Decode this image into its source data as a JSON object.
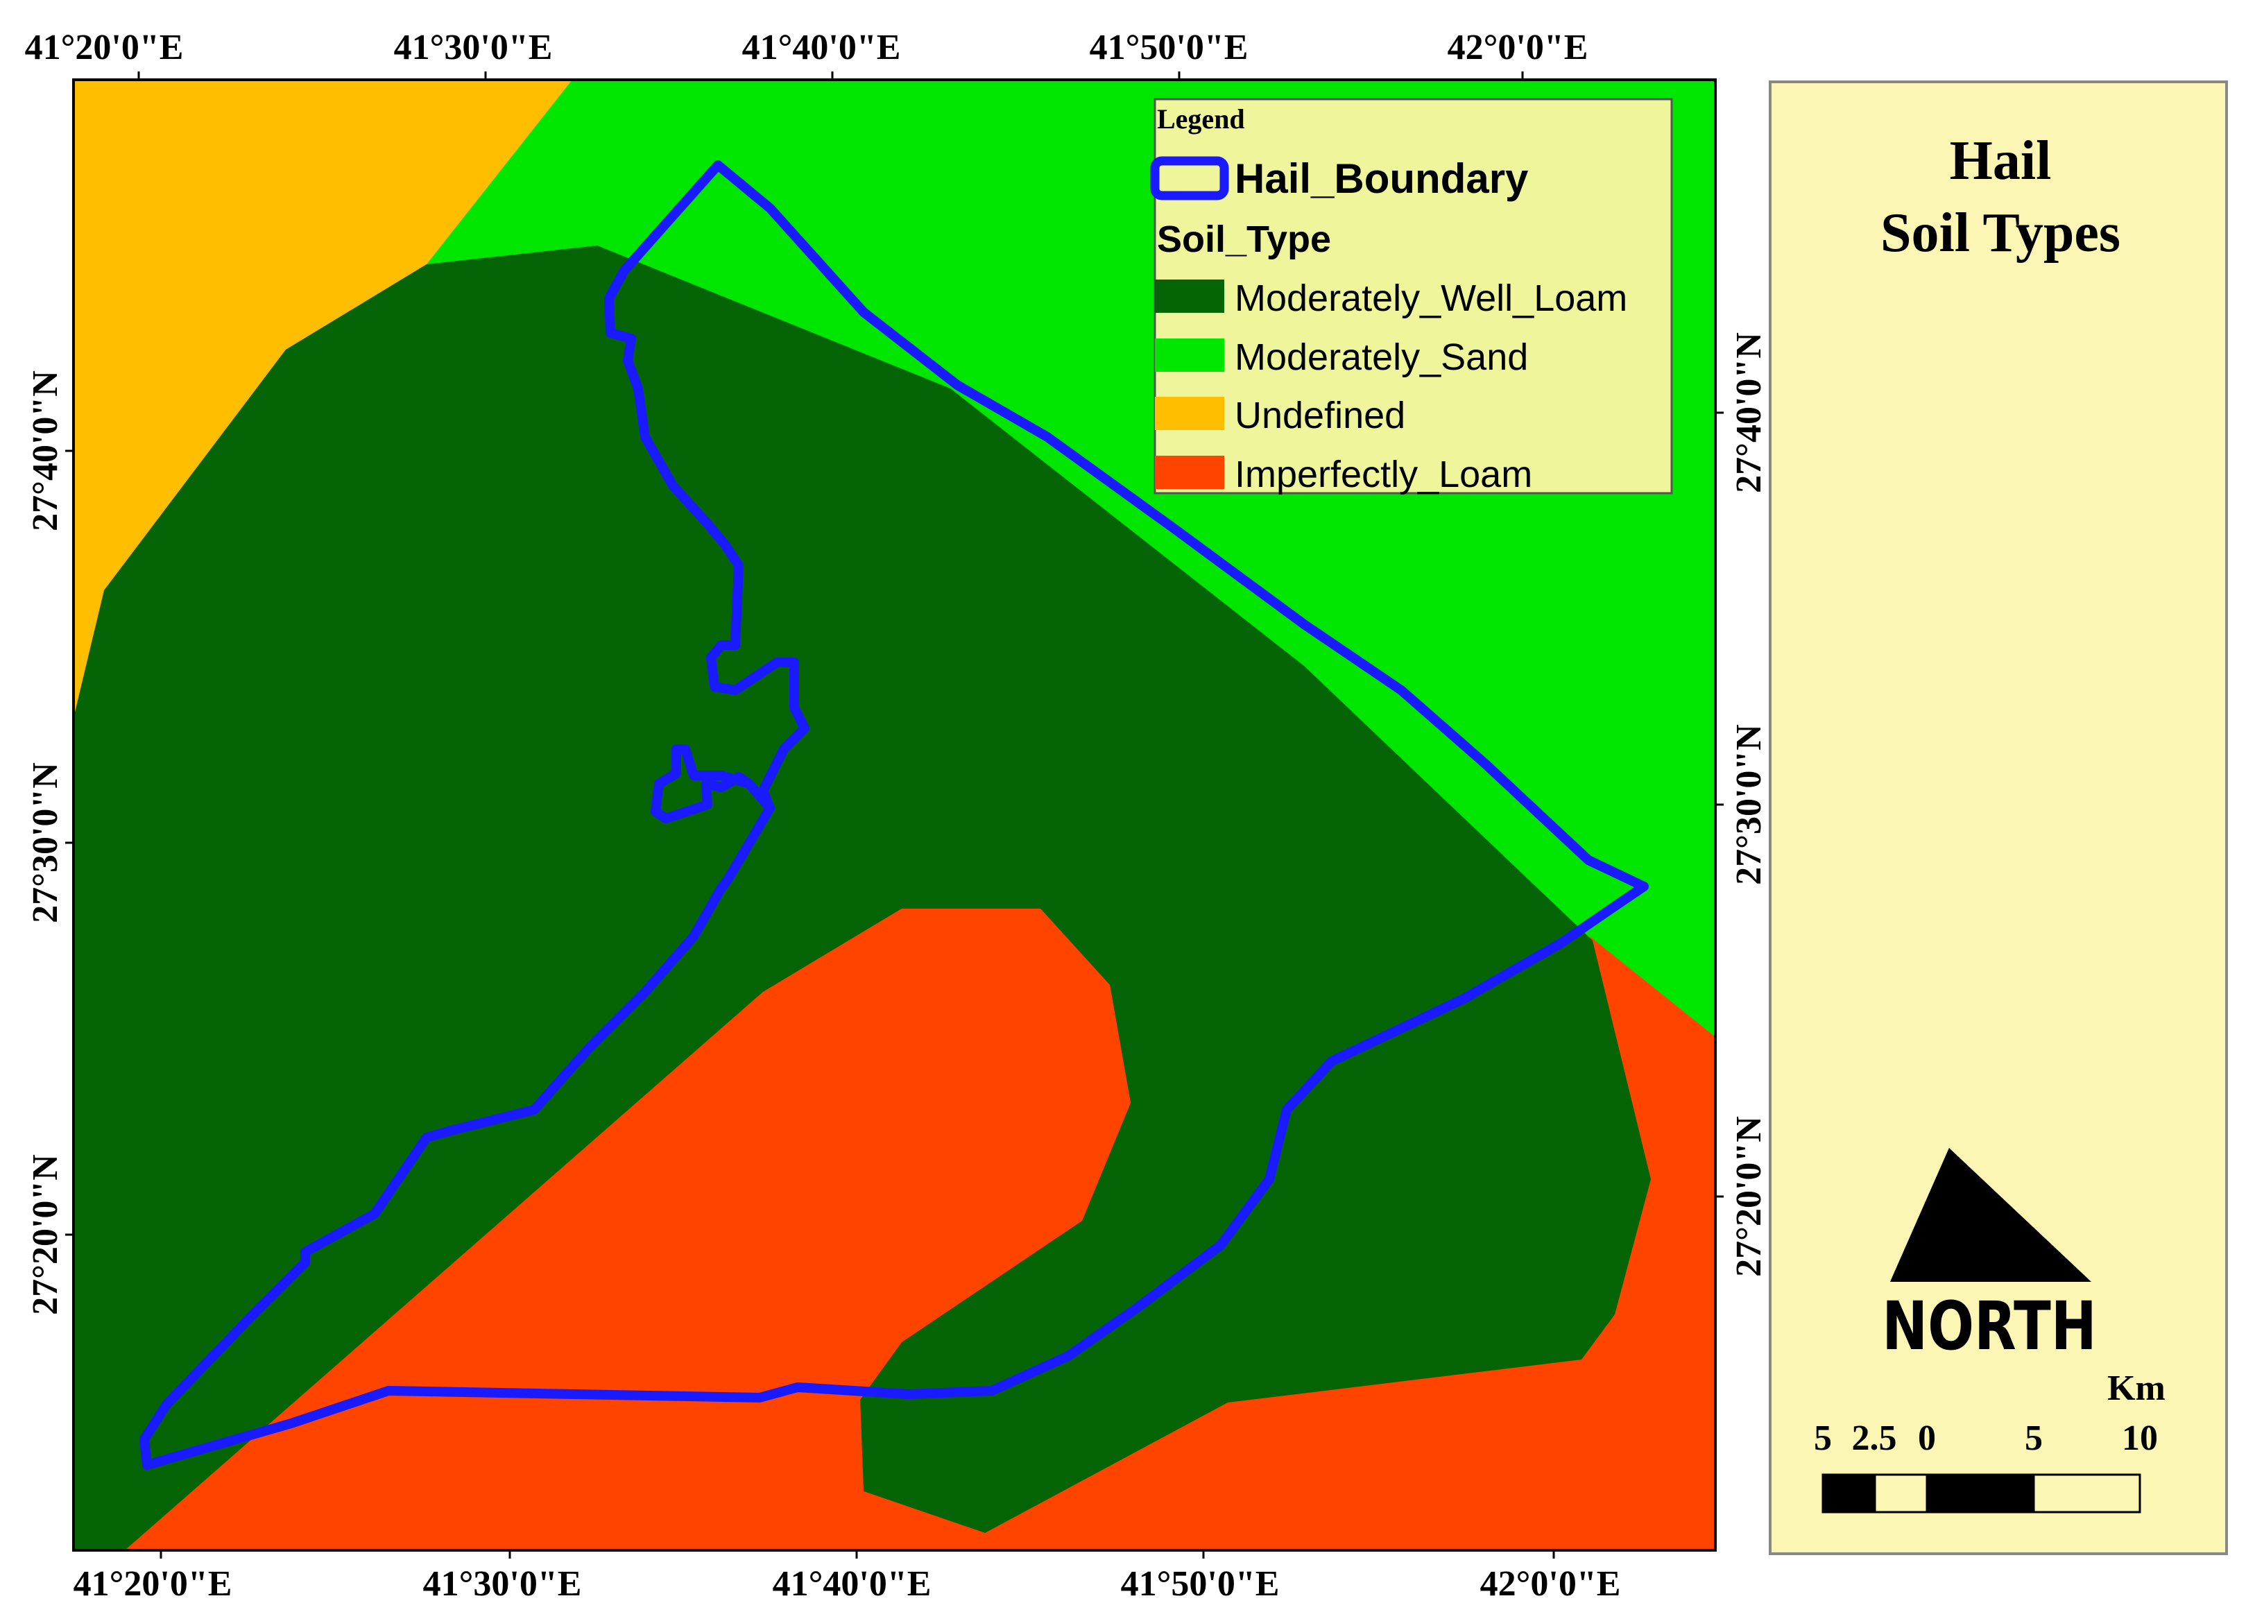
{
  "map": {
    "colors": {
      "moderately_well_loam": "#056405",
      "moderately_sand": "#00e600",
      "undefined": "#ffbe00",
      "imperfectly_loam": "#ff4400",
      "boundary": "#1a1aff",
      "panel": "#fcf6b4",
      "legend_bg": "#eef59a"
    },
    "top_axis_labels": [
      "41°20'0\"E",
      "41°30'0\"E",
      "41°40'0\"E",
      "41°50'0\"E",
      "42°0'0\"E"
    ],
    "bottom_axis_labels": [
      "41°20'0\"E",
      "41°30'0\"E",
      "41°40'0\"E",
      "41°50'0\"E",
      "42°0'0\"E"
    ],
    "left_axis_labels": [
      "27°40'0\"N",
      "27°30'0\"N",
      "27°20'0\"N"
    ],
    "right_axis_labels": [
      "27°40'0\"N",
      "27°30'0\"N",
      "27°20'0\"N"
    ]
  },
  "legend": {
    "title": "Legend",
    "boundary_label": "Hail_Boundary",
    "group_label": "Soil_Type",
    "items": [
      {
        "label": "Moderately_Well_Loam",
        "color": "#056405"
      },
      {
        "label": "Moderately_Sand",
        "color": "#00e600"
      },
      {
        "label": "Undefined",
        "color": "#ffbe00"
      },
      {
        "label": "Imperfectly_Loam",
        "color": "#ff4400"
      }
    ]
  },
  "panel": {
    "title_line1": "Hail",
    "title_line2": "Soil Types",
    "north_label": "NORTH",
    "scale_unit": "Km",
    "scale_ticks": [
      "5",
      "2.5",
      "0",
      "5",
      "10"
    ]
  }
}
